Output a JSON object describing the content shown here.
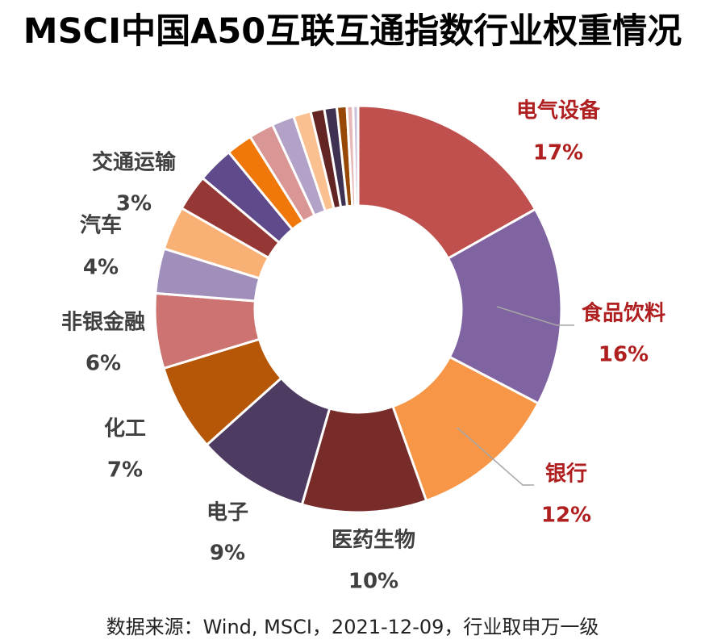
{
  "chart_data": {
    "type": "pie",
    "title": "MSCI中国A50互联互通指数行业权重情况",
    "source": "数据来源：Wind, MSCI，2021-12-09，行业取申万一级",
    "donut": true,
    "slices": [
      {
        "label": "电气设备",
        "value": 17,
        "value_label": "17%",
        "color": "#C0504D",
        "label_color": "#B01F1F"
      },
      {
        "label": "食品饮料",
        "value": 16,
        "value_label": "16%",
        "color": "#8064A2",
        "label_color": "#B01F1F"
      },
      {
        "label": "银行",
        "value": 12,
        "value_label": "12%",
        "color": "#F79646",
        "label_color": "#B01F1F"
      },
      {
        "label": "医药生物",
        "value": 10,
        "value_label": "10%",
        "color": "#772C2A",
        "label_color": "#404040"
      },
      {
        "label": "电子",
        "value": 9,
        "value_label": "9%",
        "color": "#4D3B62",
        "label_color": "#404040"
      },
      {
        "label": "化工",
        "value": 7,
        "value_label": "7%",
        "color": "#B65708",
        "label_color": "#404040"
      },
      {
        "label": "非银金融",
        "value": 6,
        "value_label": "6%",
        "color": "#CD7371",
        "label_color": "#404040"
      },
      {
        "label": "",
        "value": 3.6,
        "value_label": "",
        "color": "#A08FBB",
        "label_color": "#404040"
      },
      {
        "label": "汽车",
        "value": 3.5,
        "value_label": "4%",
        "color": "#F9B074",
        "label_color": "#404040"
      },
      {
        "label": "",
        "value": 2.9,
        "value_label": "",
        "color": "#953735",
        "label_color": "#404040"
      },
      {
        "label": "交通运输",
        "value": 2.9,
        "value_label": "3%",
        "color": "#5F4B8B",
        "label_color": "#404040"
      },
      {
        "label": "",
        "value": 2.1,
        "value_label": "",
        "color": "#F0780A",
        "label_color": "#404040"
      },
      {
        "label": "",
        "value": 2.0,
        "value_label": "",
        "color": "#D99694",
        "label_color": "#404040"
      },
      {
        "label": "",
        "value": 1.8,
        "value_label": "",
        "color": "#B3A2C7",
        "label_color": "#404040"
      },
      {
        "label": "",
        "value": 1.4,
        "value_label": "",
        "color": "#FAC090",
        "label_color": "#404040"
      },
      {
        "label": "",
        "value": 1.1,
        "value_label": "",
        "color": "#632523",
        "label_color": "#404040"
      },
      {
        "label": "",
        "value": 1.0,
        "value_label": "",
        "color": "#3F3151",
        "label_color": "#404040"
      },
      {
        "label": "",
        "value": 0.8,
        "value_label": "",
        "color": "#974806",
        "label_color": "#404040"
      },
      {
        "label": "",
        "value": 0.5,
        "value_label": "",
        "color": "#E6B9B8",
        "label_color": "#404040"
      },
      {
        "label": "",
        "value": 0.4,
        "value_label": "",
        "color": "#CCC1DA",
        "label_color": "#404040"
      }
    ]
  }
}
